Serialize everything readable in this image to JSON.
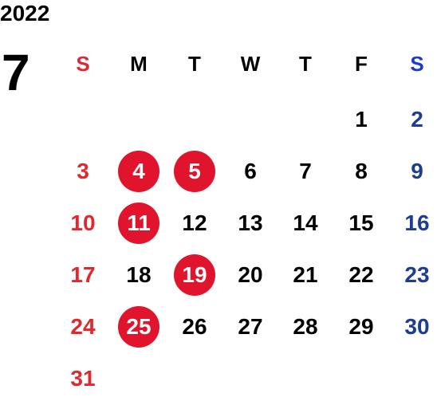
{
  "year": "2022",
  "month": "7",
  "colors": {
    "sunday": "#e0282f",
    "saturday_header": "#1a3bd1",
    "saturday": "#1e3d8f",
    "weekday": "#000000",
    "holiday_circle": "#e0142c"
  },
  "weekdays": [
    {
      "label": "S",
      "type": "sunday"
    },
    {
      "label": "M",
      "type": "weekday"
    },
    {
      "label": "T",
      "type": "weekday"
    },
    {
      "label": "W",
      "type": "weekday"
    },
    {
      "label": "T",
      "type": "weekday"
    },
    {
      "label": "F",
      "type": "weekday"
    },
    {
      "label": "S",
      "type": "saturday_header"
    }
  ],
  "first_weekday_index": 5,
  "days_in_month": 31,
  "marked_days": [
    4,
    5,
    11,
    19,
    25
  ]
}
